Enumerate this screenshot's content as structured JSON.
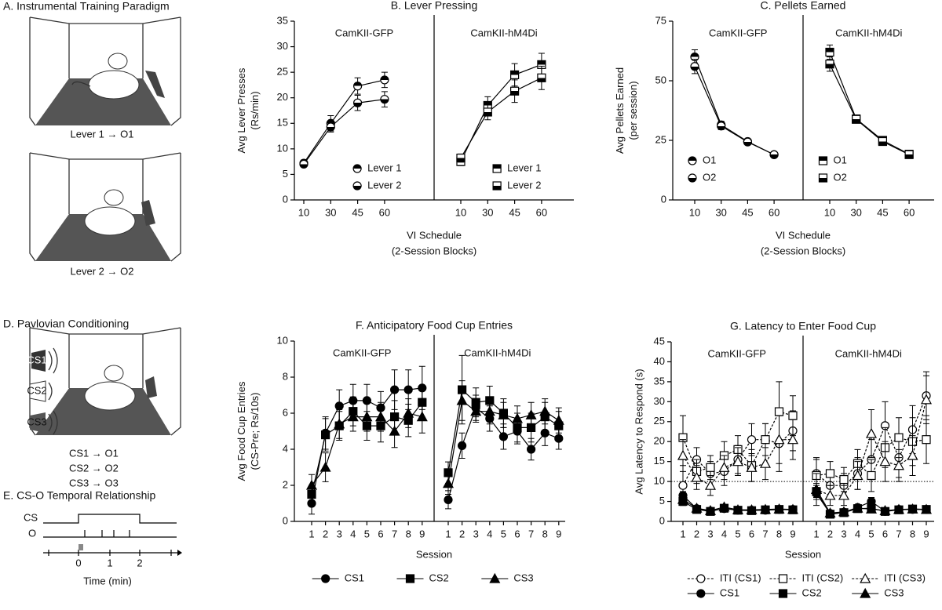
{
  "chart_data": [
    {
      "type": "line",
      "title": "B. Lever Pressing",
      "ylabel": [
        "Avg Lever Presses",
        "(Rs/min)"
      ],
      "xlabel": [
        "VI Schedule",
        "(2-Session Blocks)"
      ],
      "categories": [
        "10",
        "30",
        "45",
        "60"
      ],
      "ylim": [
        0,
        35
      ],
      "yticks": [
        0,
        5,
        10,
        15,
        20,
        25,
        30,
        35
      ],
      "color": "#000000",
      "legend": "lower right",
      "series": [
        {
          "name": "Lever 1",
          "fill": "half-top"
        },
        {
          "name": "Lever 2",
          "fill": "half-bottom"
        }
      ],
      "groups": [
        {
          "name": "CamKII-GFP",
          "marker": "circle",
          "values": [
            [
              7.2,
              15,
              22.3,
              23.5
            ],
            [
              7,
              14.3,
              19,
              19.7
            ]
          ],
          "errors": [
            [
              0.6,
              1.5,
              1.6,
              1.5
            ],
            [
              0.5,
              1.0,
              1.5,
              1.5
            ]
          ]
        },
        {
          "name": "CamKII-hM4Di",
          "marker": "square",
          "values": [
            [
              7.5,
              18.5,
              24.5,
              26.5
            ],
            [
              8.2,
              17.2,
              21.3,
              23.9
            ]
          ],
          "errors": [
            [
              0.8,
              1.7,
              2.2,
              2.2
            ],
            [
              0.8,
              1.5,
              2.2,
              2.3
            ]
          ]
        }
      ]
    },
    {
      "type": "line",
      "title": "C. Pellets Earned",
      "ylabel": [
        "Avg Pellets Earned",
        "(per session)"
      ],
      "xlabel": [
        "VI Schedule",
        "(2-Session Blocks)"
      ],
      "categories": [
        "10",
        "30",
        "45",
        "60"
      ],
      "ylim": [
        0,
        75
      ],
      "yticks": [
        0,
        25,
        50,
        75
      ],
      "color": "#000000",
      "legend": "lower left",
      "series": [
        {
          "name": "O1",
          "fill": "half-top"
        },
        {
          "name": "O2",
          "fill": "half-bottom"
        }
      ],
      "groups": [
        {
          "name": "CamKII-GFP",
          "marker": "circle",
          "values": [
            [
              60,
              31.5,
              24.5,
              19
            ],
            [
              56,
              31,
              24.3,
              19
            ]
          ],
          "errors": [
            [
              3,
              1.5,
              1,
              1
            ],
            [
              3,
              1.5,
              1,
              1
            ]
          ]
        },
        {
          "name": "CamKII-hM4Di",
          "marker": "square",
          "values": [
            [
              62,
              34,
              25,
              19.2
            ],
            [
              57,
              33.8,
              24.5,
              19
            ]
          ],
          "errors": [
            [
              3,
              1,
              1,
              1
            ],
            [
              3,
              1,
              1.5,
              1
            ]
          ]
        }
      ]
    },
    {
      "type": "line",
      "title": "F. Anticipatory Food Cup Entries",
      "ylabel": [
        "Avg Food Cup Entries",
        "(CS-Pre; Rs/10s)"
      ],
      "xlabel": [
        "Session"
      ],
      "categories": [
        "1",
        "2",
        "3",
        "4",
        "5",
        "6",
        "7",
        "8",
        "9"
      ],
      "ylim": [
        0,
        10
      ],
      "yticks": [
        0,
        2,
        4,
        6,
        8,
        10
      ],
      "color": "#000000",
      "legend": "below",
      "series": [
        {
          "name": "CS1",
          "marker": "circle",
          "fill": "black"
        },
        {
          "name": "CS2",
          "marker": "square",
          "fill": "black"
        },
        {
          "name": "CS3",
          "marker": "triangle",
          "fill": "black"
        }
      ],
      "groups": [
        {
          "name": "CamKII-GFP",
          "values": [
            [
              1,
              4.9,
              6.4,
              6.7,
              6.7,
              6.3,
              7.3,
              7.3,
              7.4
            ],
            [
              1.5,
              4.8,
              5.3,
              6.1,
              5.3,
              5.3,
              5.8,
              5.6,
              6.6
            ],
            [
              2,
              3,
              5.4,
              5.8,
              5.8,
              5.8,
              5,
              6,
              5.8
            ]
          ],
          "errors": [
            [
              0.6,
              0.9,
              0.9,
              0.9,
              0.9,
              0.9,
              1.1,
              1.1,
              1.2
            ],
            [
              0.5,
              0.9,
              0.8,
              0.8,
              0.8,
              0.9,
              0.9,
              0.9,
              0.9
            ],
            [
              0.6,
              0.8,
              0.8,
              0.8,
              0.8,
              0.8,
              0.9,
              0.8,
              0.9
            ]
          ]
        },
        {
          "name": "CamKII-hM4Di",
          "values": [
            [
              1.2,
              4.2,
              6.3,
              5.7,
              4.7,
              5,
              4,
              4.9,
              4.6
            ],
            [
              2.7,
              7.3,
              6.6,
              6.7,
              6,
              5.2,
              5.2,
              5.8,
              5.3
            ],
            [
              2.1,
              6.7,
              6.1,
              6.1,
              5.9,
              5.7,
              5.9,
              6.1,
              5.6
            ]
          ],
          "errors": [
            [
              0.5,
              0.7,
              0.7,
              0.7,
              0.7,
              0.7,
              0.6,
              0.7,
              0.6
            ],
            [
              0.6,
              1.9,
              0.8,
              0.8,
              0.8,
              0.8,
              0.8,
              0.8,
              0.8
            ],
            [
              0.6,
              1.1,
              0.6,
              0.7,
              0.7,
              0.7,
              0.7,
              0.7,
              0.7
            ]
          ]
        }
      ]
    },
    {
      "type": "line",
      "title": "G. Latency to Enter Food Cup",
      "ylabel": [
        "Avg Latency to Respond (s)"
      ],
      "xlabel": [
        "Session"
      ],
      "categories": [
        "1",
        "2",
        "3",
        "4",
        "5",
        "6",
        "7",
        "8",
        "9"
      ],
      "ylim": [
        0,
        45
      ],
      "yticks": [
        0,
        5,
        10,
        15,
        20,
        25,
        30,
        35,
        40,
        45
      ],
      "color": "#000000",
      "legend": "below",
      "reference_line": 10,
      "series": [
        {
          "name": "ITI (CS1)",
          "marker": "circle",
          "fill": "white",
          "dash": true
        },
        {
          "name": "ITI (CS2)",
          "marker": "square",
          "fill": "white",
          "dash": true
        },
        {
          "name": "ITI (CS3)",
          "marker": "triangle",
          "fill": "white",
          "dash": true
        },
        {
          "name": "CS1",
          "marker": "circle",
          "fill": "black"
        },
        {
          "name": "CS2",
          "marker": "square",
          "fill": "black"
        },
        {
          "name": "CS3",
          "marker": "triangle",
          "fill": "black"
        }
      ],
      "groups": [
        {
          "name": "CamKII-GFP",
          "values": [
            [
              9,
              15.5,
              12,
              12.5,
              15.5,
              20.5,
              20.5,
              19.5,
              22.7
            ],
            [
              21,
              12.5,
              13.5,
              16.5,
              18,
              14,
              20.5,
              27.5,
              26.5
            ],
            [
              16.5,
              11,
              9,
              13.5,
              15,
              13.5,
              14.5,
              20.5,
              20.5
            ],
            [
              6.5,
              3.2,
              2.6,
              3.2,
              2.8,
              2.8,
              2.8,
              3,
              3
            ],
            [
              5,
              3,
              2.5,
              3.3,
              2.8,
              2.7,
              2.9,
              3,
              2.9
            ],
            [
              5.5,
              3.3,
              2.7,
              3.6,
              2.9,
              2.9,
              3,
              3.1,
              3
            ]
          ],
          "errors": [
            [
              5,
              3,
              3,
              3.5,
              3.5,
              4,
              4,
              7,
              5
            ],
            [
              5.5,
              3,
              3,
              3.5,
              3.5,
              4,
              4,
              7.5,
              5
            ],
            [
              4,
              3,
              2.5,
              3,
              3.5,
              3.5,
              4,
              6,
              5
            ],
            [
              1,
              0.7,
              0.5,
              0.6,
              0.5,
              0.5,
              0.5,
              0.5,
              0.5
            ],
            [
              1,
              0.6,
              0.5,
              0.6,
              0.5,
              0.5,
              0.5,
              0.5,
              0.5
            ],
            [
              1,
              0.6,
              0.5,
              0.6,
              0.5,
              0.5,
              0.5,
              0.5,
              0.5
            ]
          ]
        },
        {
          "name": "CamKII-hM4Di",
          "values": [
            [
              12,
              9,
              9,
              12,
              15.5,
              24,
              16,
              23,
              31.5
            ],
            [
              11.5,
              12,
              10.5,
              14.5,
              11.5,
              18.5,
              21,
              20,
              20.5
            ],
            [
              8,
              6.5,
              6.5,
              11.5,
              22,
              15,
              14,
              16.5,
              30.5
            ],
            [
              7,
              2,
              2.3,
              3.5,
              5,
              2.5,
              3,
              3,
              3
            ],
            [
              7.5,
              1.8,
              2.2,
              3.2,
              3.3,
              2.5,
              2.9,
              3.1,
              3
            ],
            [
              8,
              2.1,
              2.4,
              3.3,
              3.1,
              2.7,
              3,
              3.1,
              3
            ]
          ],
          "errors": [
            [
              4,
              3,
              3,
              4,
              5,
              6,
              5,
              6,
              6
            ],
            [
              4,
              3,
              3,
              3.5,
              4,
              5,
              5,
              6,
              6
            ],
            [
              4,
              2.5,
              2.5,
              3.5,
              6,
              5,
              4,
              5,
              6
            ],
            [
              1.5,
              0.5,
              0.5,
              0.7,
              1,
              0.5,
              0.5,
              0.5,
              0.5
            ],
            [
              1.5,
              0.5,
              0.5,
              0.7,
              0.8,
              0.5,
              0.5,
              0.5,
              0.5
            ],
            [
              1.5,
              0.5,
              0.5,
              0.7,
              0.8,
              0.5,
              0.5,
              0.5,
              0.5
            ]
          ]
        }
      ]
    }
  ],
  "diagrams": {
    "A": {
      "title": "A. Instrumental Training Paradigm",
      "labels": [
        "Lever 1 → O1",
        "Lever 2 → O2"
      ]
    },
    "D": {
      "title": "D. Pavlovian Conditioning",
      "speakers": [
        "CS1",
        "CS2",
        "CS3"
      ],
      "pairs": [
        "CS1 → O1",
        "CS2 → O2",
        "CS3 → O3"
      ]
    },
    "E": {
      "title": "E. CS-O Temporal Relationship",
      "rows": [
        "CS",
        "O"
      ],
      "ticks": [
        "0",
        "1",
        "2"
      ],
      "xlabel": "Time (min)"
    }
  }
}
